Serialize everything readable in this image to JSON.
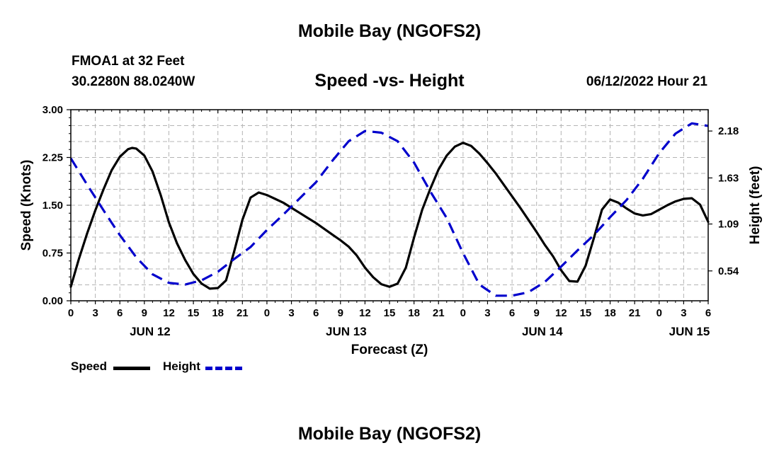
{
  "header": {
    "title": "Mobile Bay (NGOFS2)",
    "station": "FMOA1 at 32 Feet",
    "coords": "30.2280N  88.0240W",
    "subtitle": "Speed -vs- Height",
    "datetime": "06/12/2022 Hour 21"
  },
  "footer": {
    "title": "Mobile Bay (NGOFS2)"
  },
  "legend": {
    "speed_label": "Speed",
    "height_label": "Height"
  },
  "colors": {
    "speed": "#000000",
    "height": "#0000cc",
    "grid": "#b4b4b4"
  },
  "chart_data": {
    "type": "line",
    "title": "Speed -vs- Height",
    "xlabel": "Forecast (Z)",
    "ylabel": "Speed (Knots)",
    "y2label": "Height (feet)",
    "xlim": [
      0,
      78
    ],
    "ylim": [
      0,
      3
    ],
    "y2lim": [
      0.19,
      2.43
    ],
    "x_tick_labels": [
      "0",
      "3",
      "6",
      "9",
      "12",
      "15",
      "18",
      "21",
      "0",
      "3",
      "6",
      "9",
      "12",
      "15",
      "18",
      "21",
      "0",
      "3",
      "6",
      "9",
      "12",
      "15",
      "18",
      "21",
      "0",
      "3",
      "6"
    ],
    "y_ticks": [
      0,
      0.75,
      1.5,
      2.25,
      3.0
    ],
    "y_tick_labels": [
      "0.00",
      "0.75",
      "1.50",
      "2.25",
      "3.00"
    ],
    "y2_ticks": [
      0.54,
      1.09,
      1.63,
      2.18
    ],
    "y2_tick_labels": [
      "0.54",
      "1.09",
      "1.63",
      "2.18"
    ],
    "day_labels": [
      {
        "x": 9.7,
        "label": "JUN 12"
      },
      {
        "x": 33.7,
        "label": "JUN 13"
      },
      {
        "x": 57.7,
        "label": "JUN 14"
      },
      {
        "x": 75.7,
        "label": "JUN 15"
      }
    ],
    "series": [
      {
        "name": "Speed",
        "axis": "left",
        "style": "solid",
        "x": [
          0,
          1,
          2,
          3,
          4,
          5,
          6,
          7,
          7.5,
          8,
          9,
          10,
          11,
          12,
          13,
          14,
          15,
          16,
          17,
          18,
          19,
          20,
          21,
          22,
          23,
          24,
          25,
          26,
          27,
          28,
          29,
          30,
          31,
          32,
          33,
          34,
          35,
          36,
          37,
          38,
          39,
          40,
          41,
          42,
          43,
          44,
          45,
          46,
          47,
          48,
          49,
          50,
          51,
          52,
          53,
          54,
          55,
          56,
          57,
          58,
          59,
          60,
          61,
          62,
          63,
          64,
          65,
          66,
          67,
          68,
          69,
          70,
          71,
          72,
          73,
          74,
          75,
          76,
          77,
          78
        ],
        "values": [
          0.22,
          0.66,
          1.06,
          1.42,
          1.75,
          2.05,
          2.26,
          2.38,
          2.4,
          2.39,
          2.28,
          2.03,
          1.66,
          1.23,
          0.9,
          0.64,
          0.42,
          0.27,
          0.19,
          0.2,
          0.32,
          0.78,
          1.27,
          1.62,
          1.7,
          1.66,
          1.6,
          1.54,
          1.46,
          1.38,
          1.3,
          1.22,
          1.13,
          1.04,
          0.95,
          0.85,
          0.71,
          0.52,
          0.37,
          0.26,
          0.22,
          0.27,
          0.52,
          0.99,
          1.43,
          1.76,
          2.06,
          2.28,
          2.42,
          2.48,
          2.43,
          2.31,
          2.16,
          2.0,
          1.82,
          1.64,
          1.46,
          1.27,
          1.08,
          0.88,
          0.7,
          0.48,
          0.31,
          0.3,
          0.55,
          0.98,
          1.43,
          1.59,
          1.54,
          1.45,
          1.37,
          1.34,
          1.36,
          1.43,
          1.5,
          1.56,
          1.6,
          1.61,
          1.51,
          1.24
        ]
      },
      {
        "name": "Height",
        "axis": "right",
        "style": "dashed",
        "x": [
          0,
          2,
          4,
          6,
          8,
          10,
          12,
          14,
          16,
          18,
          20,
          22,
          24,
          26,
          28,
          30,
          32,
          34,
          36,
          38,
          40,
          42,
          44,
          46,
          48,
          50,
          52,
          54,
          56,
          58,
          60,
          62,
          64,
          66,
          68,
          70,
          72,
          74,
          76,
          78
        ],
        "values": [
          1.86,
          1.55,
          1.25,
          0.96,
          0.7,
          0.5,
          0.4,
          0.38,
          0.43,
          0.53,
          0.68,
          0.82,
          1.02,
          1.2,
          1.39,
          1.58,
          1.83,
          2.06,
          2.18,
          2.16,
          2.06,
          1.81,
          1.47,
          1.16,
          0.75,
          0.38,
          0.25,
          0.25,
          0.29,
          0.41,
          0.59,
          0.78,
          0.96,
          1.17,
          1.37,
          1.62,
          1.92,
          2.15,
          2.27,
          2.24
        ]
      }
    ]
  }
}
